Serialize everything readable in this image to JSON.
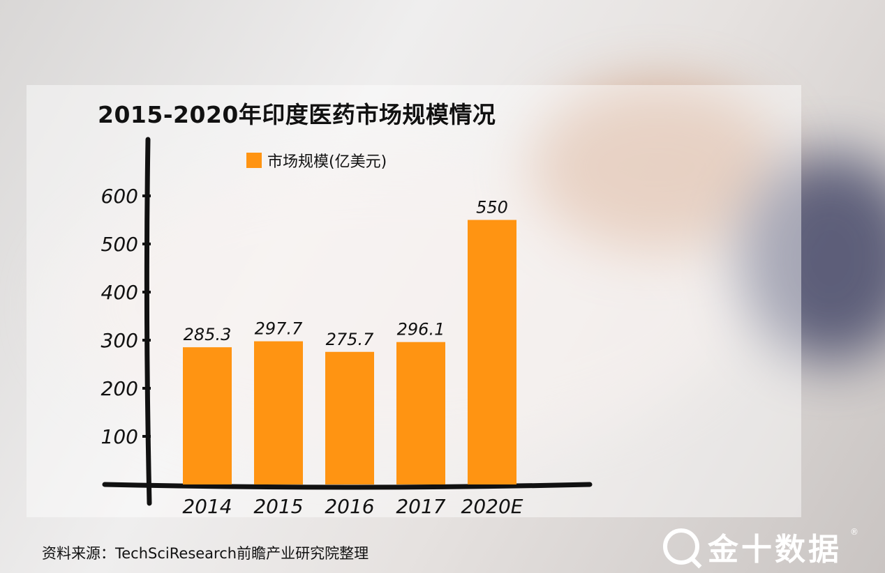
{
  "title": "2015-2020年印度医药市场规模情况",
  "legend_label": "市场规模(亿美元)",
  "source_text": "资料来源：TechSciResearch前瞻产业研究院整理",
  "brand": {
    "name": "金十数据",
    "reg": "®"
  },
  "colors": {
    "bar": "#ff9412",
    "axis": "#111111"
  },
  "chart_data": {
    "type": "bar",
    "title": "2015-2020年印度医药市场规模情况",
    "categories": [
      "2014",
      "2015",
      "2016",
      "2017",
      "2020E"
    ],
    "series": [
      {
        "name": "市场规模(亿美元)",
        "values": [
          285.3,
          297.7,
          275.7,
          296.1,
          550
        ]
      }
    ],
    "value_labels": [
      "285.3",
      "297.7",
      "275.7",
      "296.1",
      "550"
    ],
    "yticks": [
      100,
      200,
      300,
      400,
      500,
      600
    ],
    "ytick_labels": [
      "100",
      "200",
      "300",
      "400",
      "500",
      "600"
    ],
    "ylim": [
      0,
      620
    ],
    "xlabel": "",
    "ylabel": "",
    "grid": false,
    "legend": "top-left"
  }
}
